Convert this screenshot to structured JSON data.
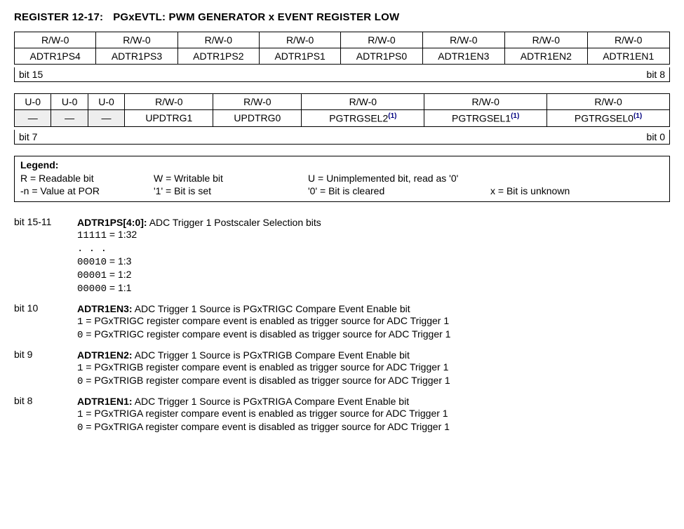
{
  "title_prefix": "REGISTER 12-17:",
  "title_name": "PGxEVTL: PWM GENERATOR x EVENT REGISTER LOW",
  "table_high": {
    "attrs": [
      "R/W-0",
      "R/W-0",
      "R/W-0",
      "R/W-0",
      "R/W-0",
      "R/W-0",
      "R/W-0",
      "R/W-0"
    ],
    "names": [
      "ADTR1PS4",
      "ADTR1PS3",
      "ADTR1PS2",
      "ADTR1PS1",
      "ADTR1PS0",
      "ADTR1EN3",
      "ADTR1EN2",
      "ADTR1EN1"
    ],
    "bit_left": "bit 15",
    "bit_right": "bit 8"
  },
  "table_low": {
    "attrs": [
      "U-0",
      "U-0",
      "U-0",
      "R/W-0",
      "R/W-0",
      "R/W-0",
      "R/W-0",
      "R/W-0"
    ],
    "names": [
      "—",
      "—",
      "—",
      "UPDTRG1",
      "UPDTRG0",
      "PGTRGSEL2",
      "PGTRGSEL1",
      "PGTRGSEL0"
    ],
    "unimp": [
      true,
      true,
      true,
      false,
      false,
      false,
      false,
      false
    ],
    "sup": [
      "",
      "",
      "",
      "",
      "",
      "(1)",
      "(1)",
      "(1)"
    ],
    "bit_left": "bit 7",
    "bit_right": "bit 0"
  },
  "legend": {
    "header": "Legend:",
    "row1": [
      "R = Readable bit",
      "W = Writable bit",
      "U = Unimplemented bit, read as '0'",
      ""
    ],
    "row2": [
      "-n = Value at POR",
      "'1' = Bit is set",
      "'0' = Bit is cleared",
      "x = Bit is unknown"
    ]
  },
  "descs": [
    {
      "label": "bit 15-11",
      "name": "ADTR1PS[4:0]:",
      "title": " ADC Trigger 1 Postscaler Selection bits",
      "lines": [
        {
          "code": "11111",
          "text": " = 1:32"
        },
        {
          "code": ". . .",
          "text": ""
        },
        {
          "code": "00010",
          "text": " = 1:3"
        },
        {
          "code": "00001",
          "text": " = 1:2"
        },
        {
          "code": "00000",
          "text": " = 1:1"
        }
      ]
    },
    {
      "label": "bit 10",
      "name": "ADTR1EN3:",
      "title": " ADC Trigger 1 Source is PGxTRIGC Compare Event Enable bit",
      "lines": [
        {
          "code": "1",
          "text": " =  PGxTRIGC register compare event is enabled as trigger source for ADC Trigger 1"
        },
        {
          "code": "0",
          "text": " =  PGxTRIGC register compare event is disabled as trigger source for ADC Trigger 1"
        }
      ]
    },
    {
      "label": "bit 9",
      "name": "ADTR1EN2:",
      "title": " ADC Trigger 1 Source is PGxTRIGB Compare Event Enable bit",
      "lines": [
        {
          "code": "1",
          "text": " =  PGxTRIGB register compare event is enabled as trigger source for ADC Trigger 1"
        },
        {
          "code": "0",
          "text": " =  PGxTRIGB register compare event is disabled as trigger source for ADC Trigger 1"
        }
      ]
    },
    {
      "label": "bit 8",
      "name": "ADTR1EN1:",
      "title": " ADC Trigger 1 Source is PGxTRIGA Compare Event Enable bit",
      "lines": [
        {
          "code": "1",
          "text": " =  PGxTRIGA register compare event is enabled as trigger source for ADC Trigger 1"
        },
        {
          "code": "0",
          "text": " =  PGxTRIGA register compare event is disabled as trigger source for ADC Trigger 1"
        }
      ]
    }
  ]
}
